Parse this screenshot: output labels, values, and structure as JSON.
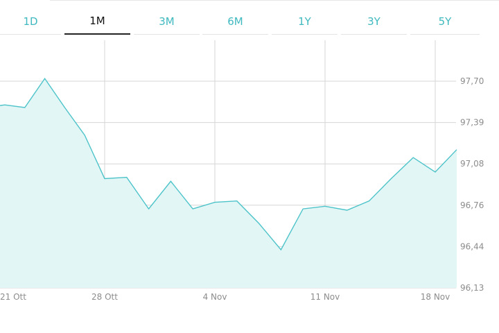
{
  "tabs": [
    {
      "label": "1D",
      "active": false
    },
    {
      "label": "1M",
      "active": true
    },
    {
      "label": "3M",
      "active": false
    },
    {
      "label": "6M",
      "active": false
    },
    {
      "label": "1Y",
      "active": false
    },
    {
      "label": "3Y",
      "active": false
    },
    {
      "label": "5Y",
      "active": false
    }
  ],
  "colors": {
    "accent": "#3fb9bf",
    "line": "#4cc3c9",
    "fill": "#e3f6f6",
    "grid": "#d6d6d6",
    "tab_active": "#111111"
  },
  "chart_data": {
    "type": "area",
    "title": "",
    "xlabel": "",
    "ylabel": "",
    "grid": true,
    "x_ticks": [
      "21 Ott",
      "28 Ott",
      "4 Nov",
      "11 Nov",
      "18 Nov"
    ],
    "y_ticks": [
      "97,70",
      "97,39",
      "97,08",
      "96,76",
      "96,44",
      "96,13"
    ],
    "ylim": [
      96.13,
      97.7
    ],
    "x": [
      "18 Ott",
      "21 Ott",
      "22 Ott",
      "23 Ott",
      "24 Ott",
      "25 Ott",
      "28 Ott",
      "29 Ott",
      "30 Ott",
      "31 Ott",
      "1 Nov",
      "4 Nov",
      "5 Nov",
      "6 Nov",
      "7 Nov",
      "8 Nov",
      "11 Nov",
      "12 Nov",
      "13 Nov",
      "14 Nov",
      "15 Nov",
      "18 Nov",
      "19 Nov"
    ],
    "values": [
      97.5,
      97.52,
      97.5,
      97.72,
      97.5,
      97.29,
      96.96,
      96.97,
      96.73,
      96.94,
      96.73,
      96.78,
      96.79,
      96.62,
      96.42,
      96.73,
      96.75,
      96.72,
      96.79,
      96.96,
      97.12,
      97.01,
      97.18
    ]
  }
}
